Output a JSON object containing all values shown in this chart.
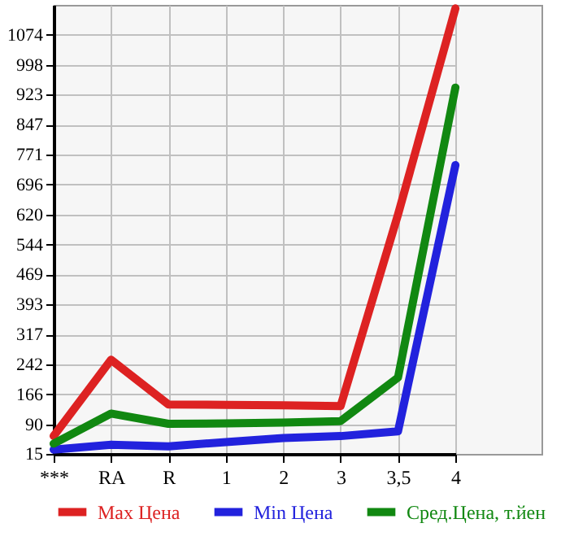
{
  "chart_data": {
    "type": "line",
    "categories": [
      "***",
      "RA",
      "R",
      "1",
      "2",
      "3",
      "3,5",
      "4"
    ],
    "series": [
      {
        "name": "Max Цена",
        "color": "#dd2222",
        "values": [
          60,
          253,
          140,
          139,
          138,
          136,
          620,
          1141
        ]
      },
      {
        "name": "Min Цена",
        "color": "#2222dd",
        "values": [
          26,
          38,
          34,
          45,
          55,
          60,
          72,
          745
        ]
      },
      {
        "name": "Сред.Цена, т.йен",
        "color": "#118811",
        "values": [
          41,
          117,
          91,
          92,
          94,
          98,
          208,
          941
        ]
      }
    ],
    "ylim": [
      15,
      1150
    ],
    "yticks": [
      15,
      90,
      166,
      242,
      317,
      393,
      469,
      544,
      620,
      696,
      771,
      847,
      923,
      998,
      1074
    ],
    "grid": true,
    "legend": "bottom",
    "marker": "none",
    "line_style": "solid"
  }
}
